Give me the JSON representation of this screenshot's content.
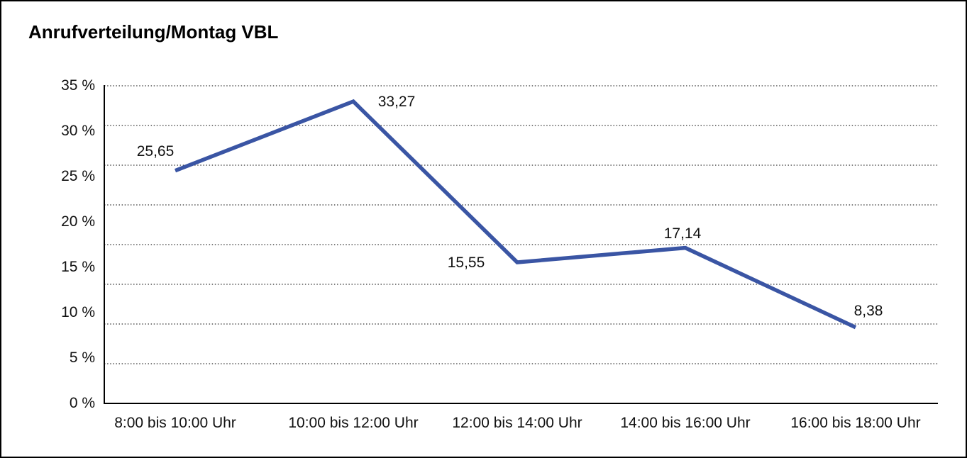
{
  "window": {
    "background_color": "#ffffff",
    "border_color": "#000000"
  },
  "chart_data": {
    "type": "line",
    "title": "Anrufverteilung/Montag VBL",
    "categories": [
      "8:00 bis 10:00 Uhr",
      "10:00 bis 12:00 Uhr",
      "12:00 bis 14:00 Uhr",
      "14:00 bis 16:00 Uhr",
      "16:00 bis 18:00 Uhr"
    ],
    "values": [
      25.65,
      33.27,
      15.55,
      17.14,
      8.38
    ],
    "point_labels": [
      "25,65",
      "33,27",
      "15,55",
      "17,14",
      "8,38"
    ],
    "xlabel": "",
    "ylabel": "",
    "ylim": [
      0,
      35
    ],
    "y_tick_step": 5,
    "y_tick_labels": [
      "35 %",
      "30 %",
      "25 %",
      "20 %",
      "15 %",
      "10 %",
      "5 %",
      "0 %"
    ],
    "grid": "horizontal-dotted",
    "gridline_count": 9,
    "legend_position": "none",
    "line_color": "#3A55A4",
    "axis_color": "#000000",
    "text_color": "#111111",
    "gridline_color": "#333333"
  }
}
